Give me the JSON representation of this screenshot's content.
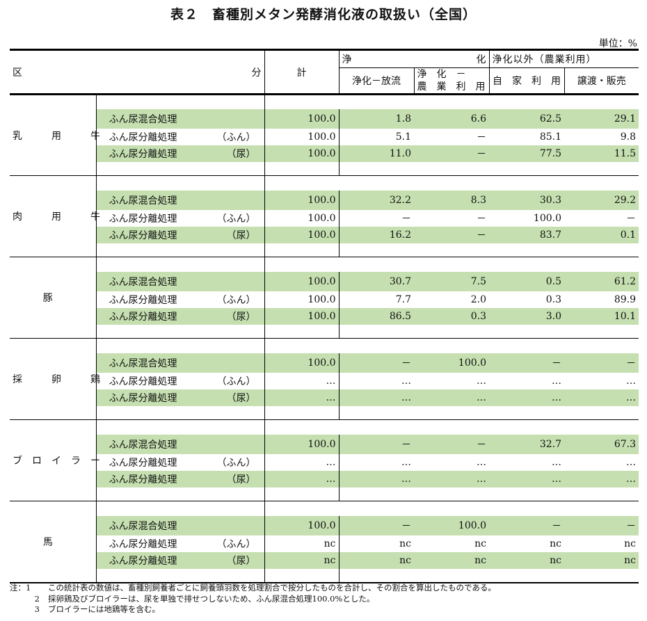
{
  "title": "表２　畜種別メタン発酵消化液の取扱い（全国）",
  "unit": "単位：%",
  "header": {
    "category": "区",
    "category2": "分",
    "total": "計",
    "purify": "浄",
    "purify2": "化",
    "non_purify": "浄化以外（農業利用）",
    "cols": [
      "浄化－放流",
      "浄　化　－",
      "農　業　利　用",
      "自　家　利　用",
      "譲渡・販売"
    ]
  },
  "groups": [
    {
      "name": "乳　用　牛",
      "rows": [
        {
          "item": "ふん尿混合処理",
          "sub": "",
          "values": [
            "100.0",
            "1.8",
            "6.6",
            "62.5",
            "29.1"
          ]
        },
        {
          "item": "ふん尿分離処理",
          "sub": "（ふん）",
          "values": [
            "100.0",
            "5.1",
            "－",
            "85.1",
            "9.8"
          ]
        },
        {
          "item": "ふん尿分離処理",
          "sub": "（尿）",
          "values": [
            "100.0",
            "11.0",
            "－",
            "77.5",
            "11.5"
          ]
        }
      ]
    },
    {
      "name": "肉　用　牛",
      "rows": [
        {
          "item": "ふん尿混合処理",
          "sub": "",
          "values": [
            "100.0",
            "32.2",
            "8.3",
            "30.3",
            "29.2"
          ]
        },
        {
          "item": "ふん尿分離処理",
          "sub": "（ふん）",
          "values": [
            "100.0",
            "－",
            "－",
            "100.0",
            "－"
          ]
        },
        {
          "item": "ふん尿分離処理",
          "sub": "（尿）",
          "values": [
            "100.0",
            "16.2",
            "－",
            "83.7",
            "0.1"
          ]
        }
      ]
    },
    {
      "name": "豚",
      "rows": [
        {
          "item": "ふん尿混合処理",
          "sub": "",
          "values": [
            "100.0",
            "30.7",
            "7.5",
            "0.5",
            "61.2"
          ]
        },
        {
          "item": "ふん尿分離処理",
          "sub": "（ふん）",
          "values": [
            "100.0",
            "7.7",
            "2.0",
            "0.3",
            "89.9"
          ]
        },
        {
          "item": "ふん尿分離処理",
          "sub": "（尿）",
          "values": [
            "100.0",
            "86.5",
            "0.3",
            "3.0",
            "10.1"
          ]
        }
      ]
    },
    {
      "name": "採　卵　鶏",
      "rows": [
        {
          "item": "ふん尿混合処理",
          "sub": "",
          "values": [
            "100.0",
            "－",
            "100.0",
            "－",
            "－"
          ]
        },
        {
          "item": "ふん尿分離処理",
          "sub": "（ふん）",
          "values": [
            "…",
            "…",
            "…",
            "…",
            "…"
          ]
        },
        {
          "item": "ふん尿分離処理",
          "sub": "（尿）",
          "values": [
            "…",
            "…",
            "…",
            "…",
            "…"
          ]
        }
      ]
    },
    {
      "name": "ブロイラー",
      "rows": [
        {
          "item": "ふん尿混合処理",
          "sub": "",
          "values": [
            "100.0",
            "－",
            "－",
            "32.7",
            "67.3"
          ]
        },
        {
          "item": "ふん尿分離処理",
          "sub": "（ふん）",
          "values": [
            "…",
            "…",
            "…",
            "…",
            "…"
          ]
        },
        {
          "item": "ふん尿分離処理",
          "sub": "（尿）",
          "values": [
            "…",
            "…",
            "…",
            "…",
            "…"
          ]
        }
      ]
    },
    {
      "name": "馬",
      "rows": [
        {
          "item": "ふん尿混合処理",
          "sub": "",
          "values": [
            "100.0",
            "－",
            "100.0",
            "－",
            "－"
          ]
        },
        {
          "item": "ふん尿分離処理",
          "sub": "（ふん）",
          "values": [
            "nc",
            "nc",
            "nc",
            "nc",
            "nc"
          ]
        },
        {
          "item": "ふん尿分離処理",
          "sub": "（尿）",
          "values": [
            "nc",
            "nc",
            "nc",
            "nc",
            "nc"
          ]
        }
      ]
    }
  ],
  "notes": [
    {
      "label": "注：1",
      "text": "この統計表の数値は、畜種別飼養者ごとに飼養頭羽数を処理割合で按分したものを合計し、その割合を算出したものである。"
    },
    {
      "label": "2",
      "text": "採卵鶏及びブロイラーは、尿を単独で排せつしないため、ふん尿混合処理100.0%とした。"
    },
    {
      "label": "3",
      "text": "ブロイラーには地鶏等を含む。"
    }
  ],
  "colors": {
    "green": "#c5dfb0"
  }
}
